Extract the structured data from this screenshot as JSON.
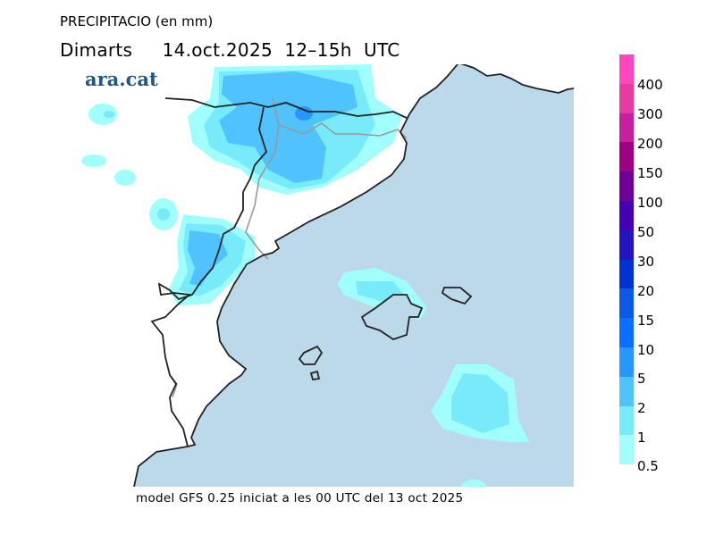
{
  "header": {
    "title": "PRECIPITACIO (en mm)",
    "subtitle": "Dimarts     14.oct.2025  12–15h  UTC"
  },
  "logo": "ara.cat",
  "footer": "model GFS 0.25 iniciat a les 00 UTC del 13 oct 2025",
  "map": {
    "sea_color": "#bcd9ea",
    "land_color": "#ffffff"
  },
  "legend": {
    "labels": [
      "400",
      "300",
      "200",
      "150",
      "100",
      "50",
      "30",
      "20",
      "15",
      "10",
      "5",
      "2",
      "1",
      "0.5"
    ],
    "colors_top_to_bottom": [
      "#ff46be",
      "#e63ca0",
      "#c81ea0",
      "#a00082",
      "#6e0096",
      "#4600b4",
      "#2314be",
      "#0032d2",
      "#0a5ae6",
      "#0a6eff",
      "#2896ff",
      "#50c3ff",
      "#78ebfa",
      "#a0fffa"
    ]
  }
}
